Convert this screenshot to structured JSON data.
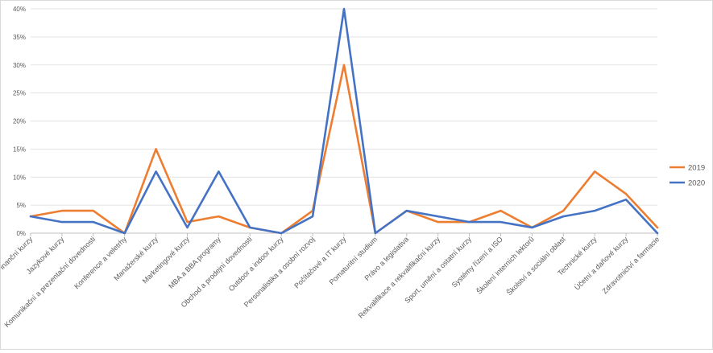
{
  "chart_data": {
    "type": "line",
    "categories": [
      "Finanční kurzy",
      "Jazykové kurzy",
      "Komunikační a prezentační dovednosti",
      "Konference a veletrhy",
      "Manažerské kurzy",
      "Marketingové kurzy",
      "MBA a BBA programy",
      "Obchod a prodejní dovednosti",
      "Outdoor a indoor kurzy",
      "Personalistika a osobní rozvoj",
      "Počítačové a IT kurzy",
      "Pomaturitní studium",
      "Právo a legislativa",
      "Rekvalifikace a rekvalifikační kurzy",
      "Sport, umění a ostatní kurzy",
      "Systémy řízení a ISO",
      "Školení interních lektorů",
      "Školství a sociální oblast",
      "Technické kurzy",
      "Účetní a daňové kurzy",
      "Zdravotnictví a farmacie"
    ],
    "series": [
      {
        "name": "2019",
        "color": "#ed7d31",
        "values": [
          3,
          4,
          4,
          0,
          15,
          2,
          3,
          1,
          0,
          4,
          30,
          0,
          4,
          2,
          2,
          4,
          1,
          4,
          11,
          7,
          1
        ]
      },
      {
        "name": "2020",
        "color": "#4472c4",
        "values": [
          3,
          2,
          2,
          0,
          11,
          1,
          11,
          1,
          0,
          3,
          40,
          0,
          4,
          3,
          2,
          2,
          1,
          3,
          4,
          6,
          0
        ]
      }
    ],
    "yticks": [
      "0%",
      "5%",
      "10%",
      "15%",
      "20%",
      "25%",
      "30%",
      "35%",
      "40%"
    ],
    "ylim": [
      0,
      40
    ],
    "yunit": "%",
    "grid": true,
    "legend_position": "right"
  }
}
